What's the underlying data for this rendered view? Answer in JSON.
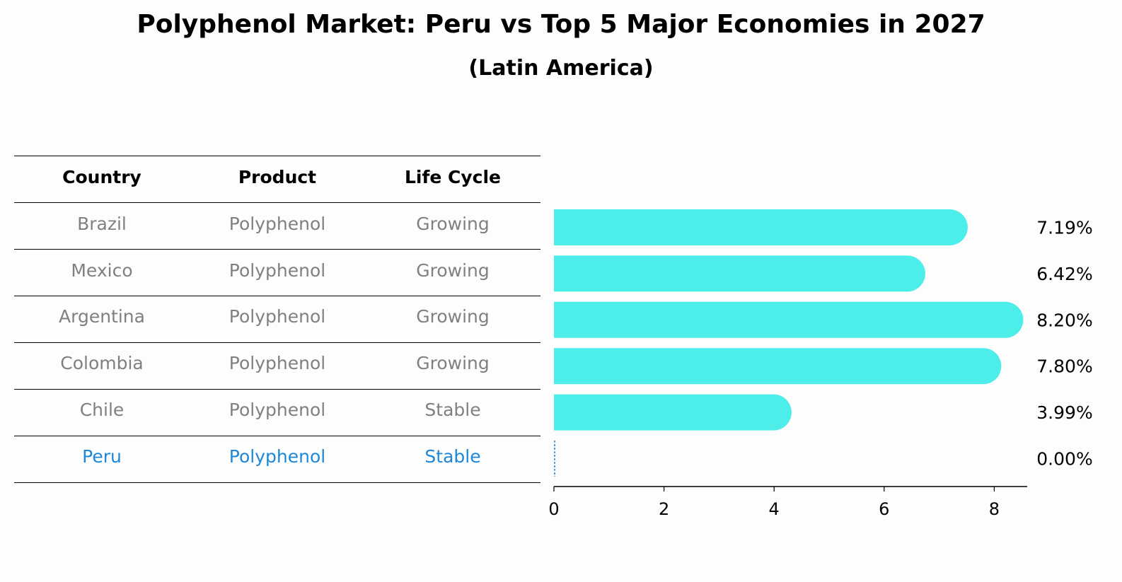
{
  "title": "Polyphenol Market: Peru vs Top 5 Major Economies in 2027",
  "subtitle": "(Latin America)",
  "table": {
    "headers": [
      "Country",
      "Product",
      "Life Cycle"
    ],
    "rows": [
      {
        "country": "Brazil",
        "product": "Polyphenol",
        "life_cycle": "Growing"
      },
      {
        "country": "Mexico",
        "product": "Polyphenol",
        "life_cycle": "Growing"
      },
      {
        "country": "Argentina",
        "product": "Polyphenol",
        "life_cycle": "Growing"
      },
      {
        "country": "Colombia",
        "product": "Polyphenol",
        "life_cycle": "Growing"
      },
      {
        "country": "Chile",
        "product": "Polyphenol",
        "life_cycle": "Stable"
      },
      {
        "country": "Peru",
        "product": "Polyphenol",
        "life_cycle": "Stable",
        "highlight": true
      }
    ]
  },
  "colors": {
    "bar": "#4deeea",
    "highlight": "#1e88d8",
    "muted": "#808080"
  },
  "chart_data": {
    "type": "bar",
    "orientation": "horizontal",
    "categories": [
      "Brazil",
      "Mexico",
      "Argentina",
      "Colombia",
      "Chile",
      "Peru"
    ],
    "values": [
      7.19,
      6.42,
      8.2,
      7.8,
      3.99,
      0.0
    ],
    "value_labels": [
      "7.19%",
      "6.42%",
      "8.20%",
      "7.80%",
      "3.99%",
      "0.00%"
    ],
    "xlim": [
      0,
      8.6
    ],
    "xticks": [
      0,
      2,
      4,
      6,
      8
    ],
    "grid": false
  }
}
